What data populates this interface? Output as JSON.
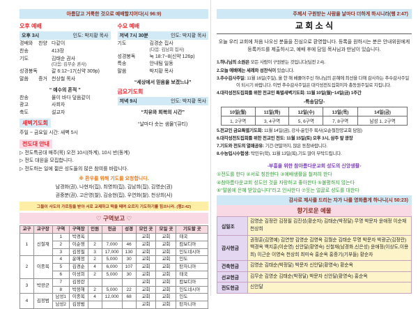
{
  "colors": {
    "accent_red": "#f2232b",
    "banner_blue": "#cfe8f5",
    "banner_text_maroon": "#8b3226",
    "highlight_yellow": "#ffefa6",
    "pink_bar": "#f9d9e4",
    "table_header_pink": "#f7d9e0",
    "label_lavender": "#e3d7f1",
    "names_cream": "#fdf4c9",
    "green_text": "#2f9e33",
    "purple_text": "#7d3fc0",
    "orange_text": "#ef7a1a"
  },
  "page_left": {
    "verse_banner": "아름답고 거룩한 것으로 예배할지어다(시 96:9)",
    "afternoon": {
      "title": "오후 예배",
      "time": "오후 3시",
      "leader": "인도: 박지황 목사",
      "rows": [
        {
          "label": "경배와 찬양",
          "value": "다같이"
        },
        {
          "label": "찬송",
          "value": "413장"
        },
        {
          "label": "기도",
          "value": "김태순 권사",
          "sub": "(다음: 김무순 권사)"
        },
        {
          "label": "성경봉독",
          "value": "갈 6:12~17(신약 309p)"
        },
        {
          "label": "말씀 증거",
          "value": "천상철 목사"
        }
      ],
      "sermon_title": "“ 예수의 흔적 ”",
      "rows2": [
        {
          "label": "찬송",
          "value": "물이 바다 덮음같이"
        },
        {
          "label": "광고",
          "value": "사회자"
        },
        {
          "label": "축도",
          "value": "설교자"
        }
      ]
    },
    "dawn": {
      "title": "새벽기도회",
      "line": "주일 ~ 금요일 시간: 새벽 5시"
    },
    "wednesday": {
      "title": "수요 예배",
      "time": "저녁 7시 30분",
      "leader": "인도: 박지황 목사",
      "rows": [
        {
          "label": "기도",
          "value": "김경순 집사",
          "sub": "(다음: 김남희 집사)"
        },
        {
          "label": "성경봉독",
          "value": "눅 18:7~8(신약 126p)"
        },
        {
          "label": "특송",
          "value": "안내팀 일동"
        },
        {
          "label": "말씀",
          "value": "박지황 목사"
        }
      ],
      "quote": "“세상에서 믿음을 보겠느냐”"
    },
    "friday": {
      "title": "금요기도회",
      "time": "저녁 9시",
      "leader": "인도: 박지황 목사",
      "quote": "“치유와 회복의 시간”",
      "quote2": "“날마다 솟는 샘물”(큐티)"
    },
    "evangelism": {
      "title": "전도대 안내",
      "bullets": [
        "▷ 전도특공대 매주(목) 오전 10시(하계), 10시 반(동계)",
        "▷ 전도 대원을 모집합니다.",
        "▷ 전도하는 일에 젊은 성도들의 많은 참여를 바랍니다."
      ],
      "prayer_request": "※ 환우를 위해 기도를 요청합니다.",
      "patients_line1": "남경화(권), 나현자(집), 최영희(집), 김남희(집), 김영순(권)",
      "patients_line2": "권중분(권), 고은영(찰), 김승현(집), 우연화(찰), 천상희(사)"
    },
    "verse_banner2": "그들이 사도의 가르침을 받아 서로 교제하고 떡을 떼며 오르지 기도하기를 힘쓰니라. (행2:42)",
    "district_report": {
      "title": "♡ 구역보고 ♡",
      "table_rows": [
        [
          {
            "t": "교구",
            "h": 1
          },
          {
            "t": "교구장",
            "h": 1
          },
          {
            "t": "구역",
            "h": 1
          },
          {
            "t": "구역장",
            "h": 1
          },
          {
            "t": "인원",
            "h": 1
          },
          {
            "t": "헌금",
            "h": 1
          },
          {
            "t": "성경",
            "h": 1
          },
          {
            "t": "모인 곳",
            "h": 1
          },
          {
            "t": "모일 곳",
            "h": 1
          },
          {
            "t": "기도할 곳",
            "h": 1
          }
        ],
        [
          {
            "t": "1",
            "rs": 3
          },
          {
            "t": "신철재",
            "rs": 3
          },
          {
            "t": "1"
          },
          {
            "t": "박경옥"
          },
          {
            "t": ""
          },
          {
            "t": ""
          },
          {
            "t": ""
          },
          {
            "t": "교회"
          },
          {
            "t": "교회"
          },
          {
            "t": "태국",
            "cls": "just"
          }
        ],
        [
          {
            "t": "2"
          },
          {
            "t": "이순영"
          },
          {
            "t": "2"
          },
          {
            "t": "7,000"
          },
          {
            "t": "46"
          },
          {
            "t": "교회"
          },
          {
            "t": "교회"
          },
          {
            "t": "캄보디아",
            "cls": "just"
          }
        ],
        [
          {
            "t": "3"
          },
          {
            "t": "김정필"
          },
          {
            "t": "3"
          },
          {
            "t": "17,000"
          },
          {
            "t": "130"
          },
          {
            "t": "교회"
          },
          {
            "t": "교회"
          },
          {
            "t": "인도네시아",
            "cls": "just"
          }
        ],
        [
          {
            "t": "2",
            "rs": 3
          },
          {
            "t": "이종목",
            "rs": 3
          },
          {
            "t": "4"
          },
          {
            "t": "윤애정"
          },
          {
            "t": "2"
          },
          {
            "t": "5,000"
          },
          {
            "t": "30"
          },
          {
            "t": "교회"
          },
          {
            "t": "교회"
          },
          {
            "t": "인도",
            "cls": "just"
          }
        ],
        [
          {
            "t": "5"
          },
          {
            "t": "김경순"
          },
          {
            "t": "4"
          },
          {
            "t": "6,000"
          },
          {
            "t": "107"
          },
          {
            "t": "교회"
          },
          {
            "t": "교회"
          },
          {
            "t": "탄자니아",
            "cls": "just"
          }
        ],
        [
          {
            "t": "6"
          },
          {
            "t": "이성희"
          },
          {
            "t": "2"
          },
          {
            "t": "5,000"
          },
          {
            "t": "30"
          },
          {
            "t": "교회"
          },
          {
            "t": "교회"
          },
          {
            "t": "태국",
            "cls": "just"
          }
        ],
        [
          {
            "t": "3",
            "rs": 2
          },
          {
            "t": "박광군",
            "rs": 2
          },
          {
            "t": "7"
          },
          {
            "t": "김정란"
          },
          {
            "t": ""
          },
          {
            "t": ""
          },
          {
            "t": ""
          },
          {
            "t": "교회"
          },
          {
            "t": "교회"
          },
          {
            "t": "캄보디아",
            "cls": "just"
          }
        ],
        [
          {
            "t": "8"
          },
          {
            "t": "박정해"
          },
          {
            "t": "2"
          },
          {
            "t": "5,000"
          },
          {
            "t": "22"
          },
          {
            "t": "교회"
          },
          {
            "t": "교회"
          },
          {
            "t": "인도네시아",
            "cls": "just"
          }
        ],
        [
          {
            "t": "4",
            "rs": 2
          },
          {
            "t": "김정범",
            "rs": 2
          },
          {
            "t": "남성1"
          },
          {
            "t": "이종목"
          },
          {
            "t": "4"
          },
          {
            "t": "12,000"
          },
          {
            "t": "68"
          },
          {
            "t": "교회"
          },
          {
            "t": "교회"
          },
          {
            "t": "인도",
            "cls": "just"
          }
        ],
        [
          {
            "t": "남성2"
          },
          {
            "t": "김정범"
          },
          {
            "t": ""
          },
          {
            "t": ""
          },
          {
            "t": ""
          },
          {
            "t": "교회"
          },
          {
            "t": "교회"
          },
          {
            "t": "탄자니아",
            "cls": "just"
          }
        ]
      ]
    }
  },
  "page_right": {
    "verse_banner": "주께서 구원받는 사람을 날마다 더하게 하시니라(행 2:47)",
    "title": "교 회 소 식",
    "welcome": "오늘 우리 교회에 처음 나오신 분들을 진심으로 환영합니다. 등록을 원하시는 분은 안내위원에게 등록카드를 제출하시고, 예배 후에 담임 목사님과 만남이 있습니다.",
    "items": [
      {
        "b": "1.하나님의 소원은",
        "t": " 모든 사람이 구원받는 것입니다(딤전 2:4)."
      },
      {
        "b": "2.오늘 예배에는 세례와 성찬식이",
        "t": " 있습니다."
      },
      {
        "b": "3.추수감사주일:",
        "t": " 11월 16일(주일), 올 한 해 베풀어주신 하나님의 은혜에 최선을 다해 감사하는 추수감사주일이 되시기 바랍니다. 이번 추수감사주일은 대각성전도집회이자 총동원주일로 지킵니다."
      },
      {
        "b": "4.대각성전도집회를 위한 전교인 특별새벽기도회: 11월 10일(월)~14일(금) 1주간",
        "t": ""
      },
      {
        "b": "5.전교인 금요특별기도회:",
        "t": " 11월 14일(금), 강사-윤인주 목사(오순절찬양교회 담임)"
      },
      {
        "b": "6.대각성전도집회를 위한 전교인 전도: 11월 15일(토) 오후 3시, 삼주 앞 광장",
        "t": ""
      },
      {
        "b": "7.기도와 전도의 열매공유:",
        "t": " 기간-연말까지, 많은 동참바랍니다."
      },
      {
        "b": "8.수능입시수험생:",
        "t": " 탁민우(학), 11월 13일(목),기도 많이 부탁드립니다."
      }
    ],
    "special_song_label": "-특송담당-",
    "special_song_rows": [
      [
        {
          "t": "10일(월)",
          "h": 1
        },
        {
          "t": "11일(화)",
          "h": 1
        },
        {
          "t": "12일(수)",
          "h": 1
        },
        {
          "t": "13일(목)",
          "h": 1
        },
        {
          "t": "14일(금)",
          "h": 1
        }
      ],
      [
        {
          "t": "1, 2구역"
        },
        {
          "t": "3, 4구역"
        },
        {
          "t": "5, 6구역"
        },
        {
          "t": "7, 8구역"
        },
        {
          "t": "남성 1, 2구역"
        }
      ]
    ],
    "revival_title": "-부흥을 위한 참아름다운교회 성도의 신앙생활-",
    "revival_lines": [
      "①전도를 한다 ②서로 칭찬한다 ③예배생활을 철저히 한다",
      "④참아름다운교회 성도인 것을 자랑하고 좋아한다 ⑤불평하지 않는다",
      "⑥“말씀에 은혜 받았습니다”라고 인사한다 ⑦웃는 얼굴로 성도를 대한다"
    ],
    "thanks_banner": "감사로 제사를 드리는 자가 나를 영화롭게 하나니(시 50:23)",
    "offering_title": "향기로운 예물",
    "offering_rows": [
      [
        {
          "t": "십일조",
          "cls": "olabel"
        },
        {
          "t": "김영순 김정란 김정필 김진성(황순자) 김태순(박정달) 무명 박문자 윤애정 이순재 천상희",
          "cls": "onames"
        }
      ],
      [
        {
          "t": "감사헌금",
          "cls": "olabel"
        },
        {
          "t": "권정훈(김명예) 김연향 김영순 김영옥 김월순 김태순 무명 박문자 박광군(김정란) 백경옥 백지훈(이순영) 신안달(황영숙) 신철재(남경화,신은성) 윤애정(이상도,이용희) 이근순 이영숙 천상희 최미숙 홍순옥 홍중기(기부들) 황순자",
          "cls": "onames"
        }
      ],
      [
        {
          "t": "건축헌금",
          "cls": "olabel"
        },
        {
          "t": "김영순 김태순(박정달) 박문자 신안달(황영숙) 황순옥",
          "cls": "onames"
        }
      ],
      [
        {
          "t": "선교헌금",
          "cls": "olabel"
        },
        {
          "t": "김무순 김영순 김태순(박정달) 박문자 신안달(황영숙) 홍순옥",
          "cls": "onames"
        }
      ],
      [
        {
          "t": "전도헌금",
          "cls": "olabel"
        },
        {
          "t": "신안달",
          "cls": "onames"
        }
      ]
    ]
  }
}
